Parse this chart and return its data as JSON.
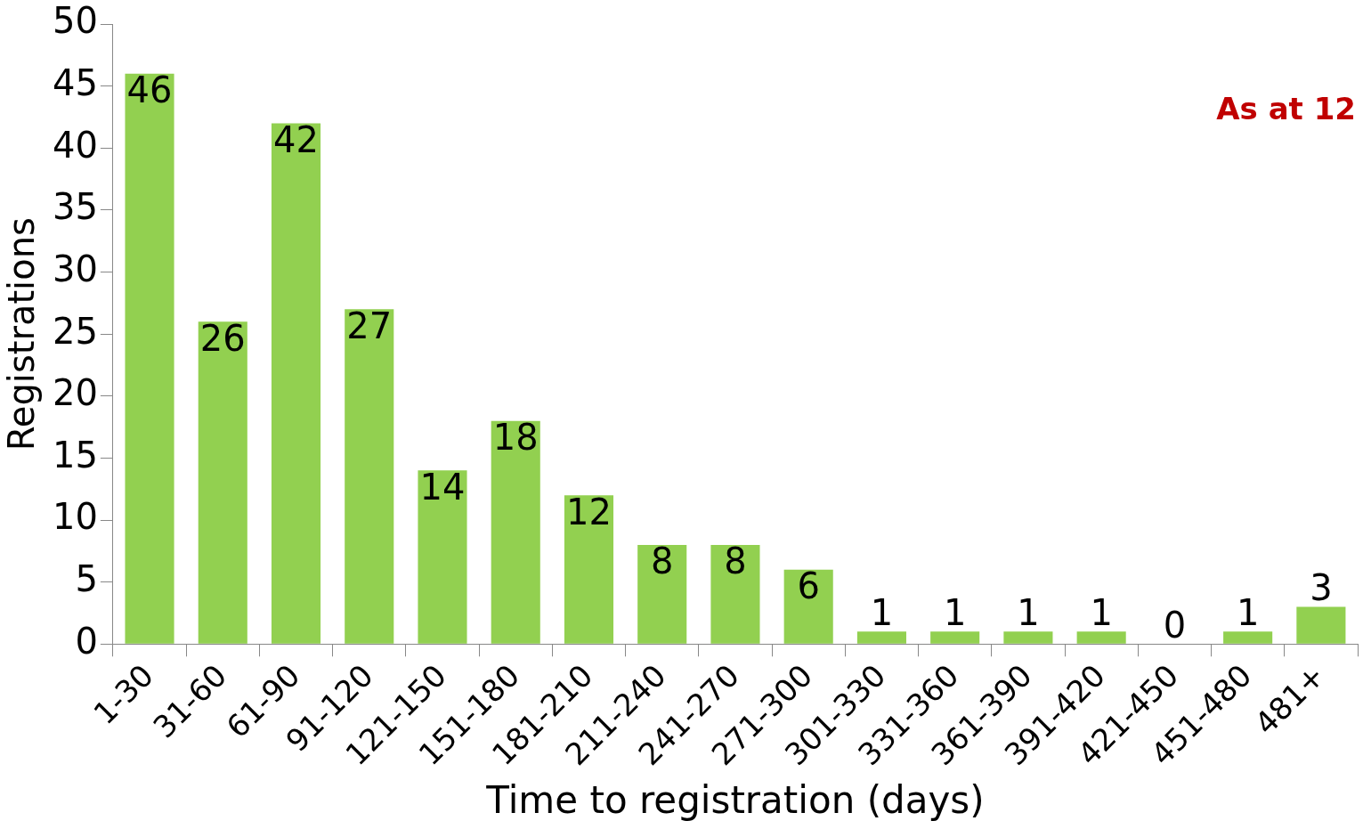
{
  "chart_data": {
    "type": "bar",
    "xlabel": "Time to registration (days)",
    "ylabel": "Registrations",
    "categories": [
      "1-30",
      "31-60",
      "61-90",
      "91-120",
      "121-150",
      "151-180",
      "181-210",
      "211-240",
      "241-270",
      "271-300",
      "301-330",
      "331-360",
      "361-390",
      "391-420",
      "421-450",
      "451-480",
      "481+"
    ],
    "values": [
      46,
      26,
      42,
      27,
      14,
      18,
      12,
      8,
      8,
      6,
      1,
      1,
      1,
      1,
      0,
      1,
      3
    ],
    "color": "#92d050",
    "ylim": [
      0,
      50
    ],
    "yticks": [
      0,
      5,
      10,
      15,
      20,
      25,
      30,
      35,
      40,
      45,
      50
    ],
    "grid": false,
    "legend": false,
    "data_labels": true,
    "annotations": [
      "As at 12"
    ]
  }
}
